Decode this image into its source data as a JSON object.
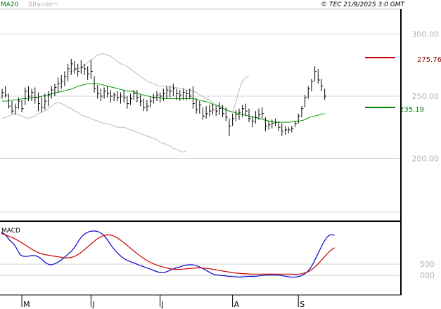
{
  "header": {
    "legend_ma20": "MA20",
    "legend_bbands": "BBands",
    "copyright": "© TEC 21/9/2025 3:0 GMT"
  },
  "levels": {
    "resistance": "275.76",
    "support": "235.19",
    "resistance_color": "#c00000",
    "support_color": "#008000"
  },
  "macd_panel": {
    "title": "MACD",
    "y_ticks": [
      "500",
      "000"
    ]
  },
  "colors": {
    "ma20": "#009900",
    "bbands": "#bbbbbb",
    "price": "#000000",
    "macd": "#0000cc",
    "signal": "#cc0000",
    "grid": "#d4d4d4"
  },
  "chart_data": [
    {
      "type": "ohlc",
      "title": "",
      "y_ticks": [
        {
          "value": 300,
          "label": "300.00"
        },
        {
          "value": 250,
          "label": "250.00"
        },
        {
          "value": 200,
          "label": "200.00"
        }
      ],
      "ylim": [
        150,
        320
      ],
      "x_month_labels": [
        {
          "label": "M",
          "bar": 6
        },
        {
          "label": "J",
          "bar": 27
        },
        {
          "label": "J",
          "bar": 48
        },
        {
          "label": "A",
          "bar": 70
        },
        {
          "label": "S",
          "bar": 90
        }
      ],
      "bars": [
        {
          "h": 256,
          "l": 248,
          "c": 253
        },
        {
          "h": 258,
          "l": 249,
          "c": 251
        },
        {
          "h": 252,
          "l": 240,
          "c": 242
        },
        {
          "h": 246,
          "l": 236,
          "c": 238
        },
        {
          "h": 244,
          "l": 235,
          "c": 241
        },
        {
          "h": 249,
          "l": 240,
          "c": 246
        },
        {
          "h": 247,
          "l": 237,
          "c": 240
        },
        {
          "h": 257,
          "l": 243,
          "c": 254
        },
        {
          "h": 258,
          "l": 246,
          "c": 250
        },
        {
          "h": 256,
          "l": 246,
          "c": 253
        },
        {
          "h": 257,
          "l": 244,
          "c": 249
        },
        {
          "h": 253,
          "l": 238,
          "c": 244
        },
        {
          "h": 249,
          "l": 237,
          "c": 241
        },
        {
          "h": 252,
          "l": 239,
          "c": 246
        },
        {
          "h": 254,
          "l": 242,
          "c": 251
        },
        {
          "h": 258,
          "l": 248,
          "c": 255
        },
        {
          "h": 260,
          "l": 250,
          "c": 257
        },
        {
          "h": 265,
          "l": 253,
          "c": 260
        },
        {
          "h": 267,
          "l": 256,
          "c": 262
        },
        {
          "h": 270,
          "l": 258,
          "c": 266
        },
        {
          "h": 276,
          "l": 262,
          "c": 272
        },
        {
          "h": 280,
          "l": 267,
          "c": 276
        },
        {
          "h": 278,
          "l": 268,
          "c": 272
        },
        {
          "h": 276,
          "l": 266,
          "c": 270
        },
        {
          "h": 279,
          "l": 268,
          "c": 273
        },
        {
          "h": 276,
          "l": 267,
          "c": 272
        },
        {
          "h": 274,
          "l": 263,
          "c": 268
        },
        {
          "h": 279,
          "l": 264,
          "c": 270
        },
        {
          "h": 266,
          "l": 253,
          "c": 256
        },
        {
          "h": 259,
          "l": 248,
          "c": 252
        },
        {
          "h": 256,
          "l": 246,
          "c": 250
        },
        {
          "h": 257,
          "l": 248,
          "c": 254
        },
        {
          "h": 258,
          "l": 249,
          "c": 252
        },
        {
          "h": 255,
          "l": 245,
          "c": 250
        },
        {
          "h": 253,
          "l": 246,
          "c": 251
        },
        {
          "h": 254,
          "l": 246,
          "c": 249
        },
        {
          "h": 253,
          "l": 244,
          "c": 250
        },
        {
          "h": 255,
          "l": 245,
          "c": 249
        },
        {
          "h": 250,
          "l": 240,
          "c": 244
        },
        {
          "h": 252,
          "l": 243,
          "c": 248
        },
        {
          "h": 255,
          "l": 247,
          "c": 252
        },
        {
          "h": 255,
          "l": 245,
          "c": 249
        },
        {
          "h": 251,
          "l": 242,
          "c": 246
        },
        {
          "h": 248,
          "l": 238,
          "c": 241
        },
        {
          "h": 247,
          "l": 238,
          "c": 242
        },
        {
          "h": 249,
          "l": 241,
          "c": 246
        },
        {
          "h": 252,
          "l": 244,
          "c": 249
        },
        {
          "h": 254,
          "l": 246,
          "c": 251
        },
        {
          "h": 253,
          "l": 245,
          "c": 250
        },
        {
          "h": 256,
          "l": 246,
          "c": 252
        },
        {
          "h": 258,
          "l": 248,
          "c": 255
        },
        {
          "h": 258,
          "l": 249,
          "c": 254
        },
        {
          "h": 260,
          "l": 250,
          "c": 256
        },
        {
          "h": 256,
          "l": 247,
          "c": 252
        },
        {
          "h": 255,
          "l": 246,
          "c": 251
        },
        {
          "h": 256,
          "l": 247,
          "c": 253
        },
        {
          "h": 255,
          "l": 247,
          "c": 252
        },
        {
          "h": 256,
          "l": 248,
          "c": 250
        },
        {
          "h": 258,
          "l": 240,
          "c": 244
        },
        {
          "h": 248,
          "l": 236,
          "c": 239
        },
        {
          "h": 246,
          "l": 236,
          "c": 243
        },
        {
          "h": 241,
          "l": 231,
          "c": 234
        },
        {
          "h": 242,
          "l": 232,
          "c": 236
        },
        {
          "h": 243,
          "l": 234,
          "c": 238
        },
        {
          "h": 244,
          "l": 235,
          "c": 239
        },
        {
          "h": 242,
          "l": 234,
          "c": 238
        },
        {
          "h": 245,
          "l": 235,
          "c": 240
        },
        {
          "h": 243,
          "l": 233,
          "c": 236
        },
        {
          "h": 241,
          "l": 230,
          "c": 233
        },
        {
          "h": 232,
          "l": 218,
          "c": 226
        },
        {
          "h": 236,
          "l": 226,
          "c": 232
        },
        {
          "h": 239,
          "l": 230,
          "c": 235
        },
        {
          "h": 240,
          "l": 231,
          "c": 237
        },
        {
          "h": 243,
          "l": 233,
          "c": 240
        },
        {
          "h": 244,
          "l": 234,
          "c": 238
        },
        {
          "h": 240,
          "l": 229,
          "c": 232
        },
        {
          "h": 234,
          "l": 225,
          "c": 230
        },
        {
          "h": 238,
          "l": 228,
          "c": 233
        },
        {
          "h": 240,
          "l": 231,
          "c": 235
        },
        {
          "h": 241,
          "l": 232,
          "c": 236
        },
        {
          "h": 233,
          "l": 222,
          "c": 226
        },
        {
          "h": 230,
          "l": 223,
          "c": 227
        },
        {
          "h": 231,
          "l": 224,
          "c": 228
        },
        {
          "h": 232,
          "l": 226,
          "c": 229
        },
        {
          "h": 230,
          "l": 222,
          "c": 225
        },
        {
          "h": 228,
          "l": 218,
          "c": 222
        },
        {
          "h": 226,
          "l": 219,
          "c": 223
        },
        {
          "h": 225,
          "l": 220,
          "c": 223
        },
        {
          "h": 226,
          "l": 221,
          "c": 224
        },
        {
          "h": 230,
          "l": 225,
          "c": 228
        },
        {
          "h": 236,
          "l": 228,
          "c": 234
        },
        {
          "h": 242,
          "l": 233,
          "c": 240
        },
        {
          "h": 251,
          "l": 241,
          "c": 249
        },
        {
          "h": 258,
          "l": 248,
          "c": 256
        },
        {
          "h": 264,
          "l": 254,
          "c": 262
        },
        {
          "h": 274,
          "l": 262,
          "c": 270
        },
        {
          "h": 272,
          "l": 260,
          "c": 263
        },
        {
          "h": 264,
          "l": 254,
          "c": 258
        },
        {
          "h": 256,
          "l": 247,
          "c": 250
        }
      ],
      "ma20": [
        246,
        246,
        247,
        247,
        248,
        248,
        249,
        249,
        250,
        251,
        252,
        253,
        254,
        255,
        256,
        258,
        259,
        260,
        260,
        260,
        259,
        258,
        257,
        256,
        255,
        254,
        254,
        252,
        251,
        250,
        249,
        249,
        248,
        248,
        248,
        248,
        248,
        248,
        248,
        247,
        246,
        245,
        243,
        242,
        240,
        238,
        237,
        236,
        235,
        234,
        233,
        232,
        231,
        230,
        229,
        229,
        229,
        229,
        230,
        230,
        231,
        233,
        234,
        235,
        236
      ],
      "ma20_start_bar": 0,
      "bb_upper": [
        270,
        270,
        271,
        272,
        273,
        275,
        277,
        279,
        281,
        283,
        284,
        284,
        283,
        282,
        280,
        278,
        276,
        275,
        274,
        272,
        270,
        268,
        266,
        264,
        262,
        261,
        260,
        259,
        258,
        258,
        258,
        258,
        257,
        257,
        256,
        256,
        255,
        255,
        254,
        253,
        251,
        250,
        248,
        247,
        245,
        243,
        242,
        240,
        239,
        238,
        237,
        245,
        255,
        262,
        265,
        266
      ],
      "bb_upper_start_bar": 20,
      "bb_lower": [
        232,
        233,
        234,
        235,
        236,
        235,
        234,
        233,
        232,
        233,
        234,
        236,
        237,
        238,
        240,
        242,
        244,
        245,
        244,
        243,
        241,
        240,
        238,
        237,
        235,
        234,
        233,
        232,
        231,
        230,
        229,
        228,
        228,
        227,
        226,
        225,
        225,
        225,
        224,
        223,
        222,
        221,
        220,
        219,
        218,
        217,
        216,
        215,
        213,
        212,
        211,
        210,
        208,
        207,
        206,
        205,
        206
      ],
      "bb_lower_start_bar": 0
    },
    {
      "type": "line",
      "title": "",
      "ylim": [
        -800,
        2300
      ],
      "series": [
        {
          "name": "",
          "color": "#0000cc",
          "values": [
            1900,
            1840,
            1720,
            1560,
            1460,
            1320,
            1120,
            910,
            850,
            840,
            850,
            870,
            880,
            860,
            800,
            720,
            600,
            520,
            470,
            480,
            520,
            580,
            660,
            750,
            850,
            960,
            1060,
            1200,
            1380,
            1580,
            1730,
            1830,
            1900,
            1950,
            1960,
            1960,
            1930,
            1870,
            1780,
            1640,
            1480,
            1300,
            1150,
            1010,
            900,
            800,
            720,
            660,
            610,
            560,
            520,
            470,
            420,
            380,
            340,
            300,
            250,
            200,
            160,
            130,
            120,
            140,
            190,
            240,
            290,
            330,
            360,
            400,
            440,
            460,
            470,
            470,
            450,
            410,
            360,
            300,
            240,
            170,
            100,
            50,
            20,
            10,
            0,
            -10,
            -30,
            -40,
            -50,
            -60,
            -70,
            -70,
            -60,
            -50,
            -40,
            -40,
            -40,
            -30,
            -20,
            0,
            10,
            20,
            20,
            20,
            20,
            10,
            0,
            -20,
            -40,
            -60,
            -80,
            -80,
            -60,
            -40,
            10,
            80,
            180,
            320,
            520,
            760,
            1000,
            1250,
            1480,
            1660,
            1770,
            1800,
            1770
          ]
        },
        {
          "name": "",
          "color": "#cc0000",
          "values": [
            1850,
            1810,
            1770,
            1720,
            1670,
            1610,
            1550,
            1480,
            1410,
            1330,
            1250,
            1170,
            1100,
            1040,
            990,
            950,
            920,
            900,
            880,
            860,
            840,
            820,
            800,
            780,
            770,
            780,
            800,
            840,
            900,
            980,
            1070,
            1170,
            1270,
            1380,
            1480,
            1580,
            1660,
            1720,
            1770,
            1790,
            1790,
            1760,
            1710,
            1640,
            1560,
            1470,
            1370,
            1270,
            1170,
            1070,
            970,
            880,
            790,
            710,
            640,
            580,
            520,
            470,
            430,
            390,
            360,
            330,
            300,
            280,
            270,
            270,
            270,
            280,
            290,
            300,
            310,
            320,
            330,
            330,
            330,
            320,
            310,
            290,
            270,
            250,
            230,
            210,
            190,
            170,
            150,
            130,
            110,
            100,
            90,
            80,
            70,
            70,
            60,
            60,
            60,
            60,
            60,
            60,
            60,
            60,
            60,
            60,
            60,
            60,
            60,
            60,
            60,
            60,
            50,
            50,
            60,
            80,
            110,
            150,
            210,
            300,
            400,
            520,
            650,
            790,
            920,
            1040,
            1140,
            1220
          ]
        }
      ],
      "y_ticks": [
        {
          "value": 500,
          "label": "500"
        },
        {
          "value": 0,
          "label": "000"
        }
      ],
      "zero_line": true
    }
  ]
}
